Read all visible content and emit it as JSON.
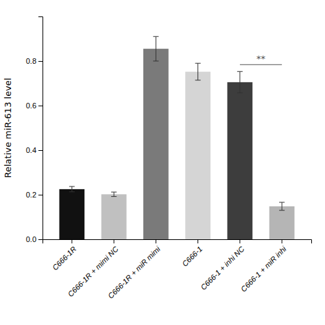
{
  "chart_data": {
    "type": "bar",
    "categories": [
      "C666-1R",
      "C666-1R + mimi NC",
      "C666-1R + miR mimi",
      "C666-1",
      "C666-1 + inhi NC",
      "C666-1 + miR inhi"
    ],
    "values": [
      0.225,
      0.202,
      0.855,
      0.752,
      0.705,
      0.148
    ],
    "errors": [
      0.012,
      0.01,
      0.055,
      0.038,
      0.048,
      0.018
    ],
    "colors": [
      "#111111",
      "#c0c0c0",
      "#7a7a7a",
      "#d5d5d5",
      "#3d3d3d",
      "#b5b5b5"
    ],
    "ylabel": "Relative miR-613 level",
    "ylim": [
      0,
      1.0
    ],
    "yticks": [
      {
        "value": 0.0,
        "label": "0.0"
      },
      0.2,
      0.4,
      0.6,
      0.8
    ],
    "grid": false,
    "annotations": [
      {
        "text": "**",
        "x": [
          "C666-1 + inhi NC",
          "C666-1 + miR inhi"
        ]
      }
    ]
  }
}
